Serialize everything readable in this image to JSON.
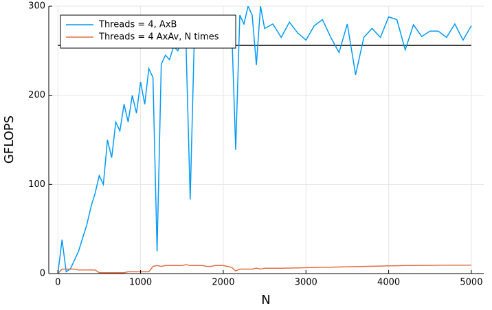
{
  "chart_data": {
    "type": "line",
    "x": [
      0,
      50,
      100,
      150,
      200,
      250,
      300,
      350,
      400,
      450,
      500,
      550,
      600,
      650,
      700,
      750,
      800,
      850,
      900,
      950,
      1000,
      1050,
      1100,
      1150,
      1200,
      1250,
      1300,
      1350,
      1400,
      1450,
      1500,
      1550,
      1600,
      1650,
      1700,
      1750,
      1800,
      1850,
      1900,
      1950,
      2000,
      2050,
      2100,
      2150,
      2200,
      2250,
      2300,
      2350,
      2400,
      2450,
      2500,
      2600,
      2700,
      2800,
      2900,
      3000,
      3100,
      3200,
      3300,
      3400,
      3500,
      3600,
      3700,
      3800,
      3900,
      4000,
      4100,
      4200,
      4300,
      4400,
      4500,
      4600,
      4700,
      4800,
      4900,
      5000
    ],
    "series": [
      {
        "name": "Threads = 4, AxB",
        "color": "#009af9",
        "values": [
          0,
          38,
          2,
          5,
          15,
          25,
          40,
          55,
          75,
          90,
          110,
          100,
          150,
          130,
          170,
          160,
          190,
          170,
          200,
          180,
          215,
          190,
          230,
          220,
          25,
          235,
          245,
          240,
          255,
          250,
          260,
          255,
          83,
          265,
          255,
          270,
          260,
          275,
          270,
          280,
          275,
          285,
          280,
          139,
          290,
          280,
          300,
          290,
          234,
          300,
          275,
          280,
          265,
          282,
          270,
          262,
          278,
          285,
          265,
          248,
          280,
          223,
          265,
          275,
          265,
          288,
          285,
          251,
          279,
          266,
          272,
          272,
          265,
          280,
          262,
          278
        ]
      },
      {
        "name": "Threads = 4 AxAv, N times",
        "color": "#e26f46",
        "values": [
          0,
          5,
          5,
          5,
          5,
          4,
          4,
          4,
          4,
          4,
          1,
          1,
          1,
          1,
          1,
          1,
          1,
          2,
          2,
          2,
          2,
          2,
          2,
          8,
          9,
          8,
          9,
          9,
          9,
          9,
          9,
          10,
          9,
          9,
          9,
          9,
          8,
          8,
          9,
          9,
          9,
          8,
          7,
          3,
          5,
          5,
          5,
          5,
          6,
          5,
          6,
          6,
          6,
          6.2,
          6.4,
          6.6,
          6.8,
          7,
          7.2,
          7.4,
          7.6,
          7.8,
          8,
          8.2,
          8.4,
          8.6,
          8.8,
          9,
          9,
          9.2,
          9.2,
          9.3,
          9.4,
          9.4,
          9.5,
          9.5
        ]
      }
    ],
    "hline": 256,
    "hline_color": "#000000",
    "xlabel": "N",
    "ylabel": "GFLOPS",
    "xlim": [
      -110,
      5150
    ],
    "ylim": [
      0,
      300
    ],
    "xticks": [
      0,
      1000,
      2000,
      3000,
      4000,
      5000
    ],
    "yticks": [
      0,
      100,
      200,
      300
    ],
    "grid": true,
    "legend": "top-left"
  }
}
